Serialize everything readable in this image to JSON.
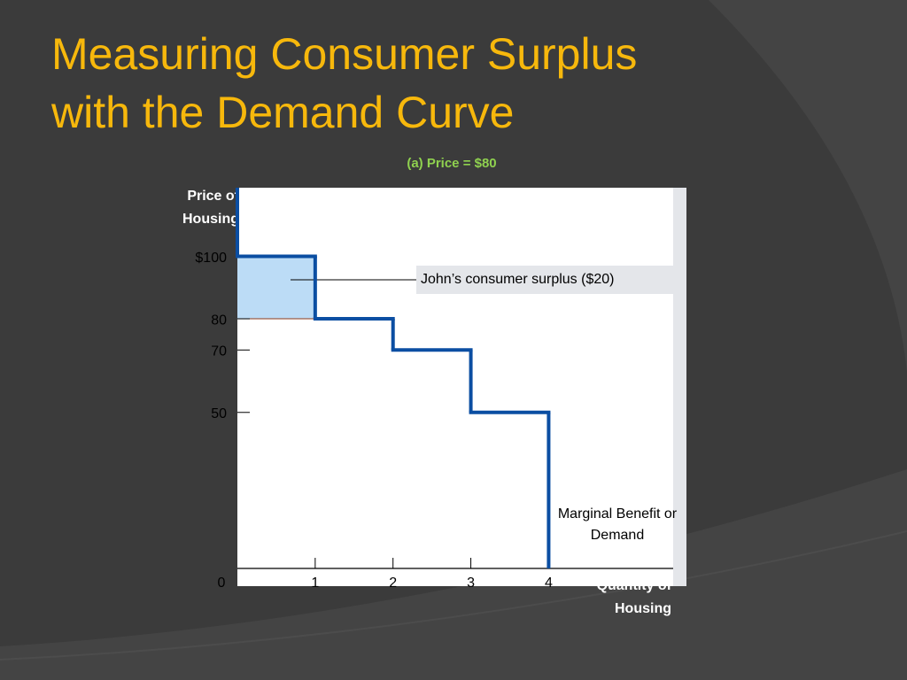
{
  "slide": {
    "title": "Measuring Consumer Surplus with the Demand Curve"
  },
  "chart_data": {
    "type": "step",
    "subtitle": "(a) Price = $80",
    "y_label": "Price of Housing",
    "x_label": "Quantity of Housing",
    "annotation": "John’s consumer surplus ($20)",
    "x": [
      1,
      2,
      3,
      4
    ],
    "values": [
      100,
      80,
      70,
      50
    ],
    "series_name": "Marginal Benefit or Demand",
    "color": "#0b4ea2",
    "surplus_color": "#bcdcf6",
    "xlim": [
      0,
      5.6
    ],
    "xticks": [
      0,
      1,
      2,
      3,
      4
    ],
    "ylim": [
      0,
      122
    ],
    "yticks": [
      {
        "value": 100,
        "label": "$100"
      },
      80,
      70,
      50
    ]
  }
}
